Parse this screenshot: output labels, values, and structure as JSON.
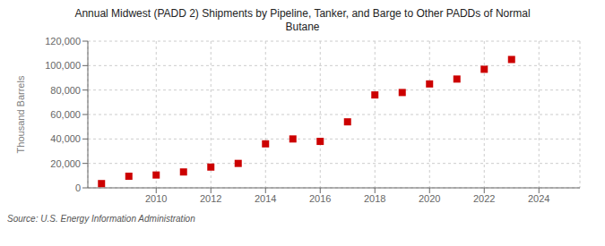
{
  "chart_data": {
    "type": "scatter",
    "title": "Annual Midwest (PADD 2) Shipments by Pipeline, Tanker, and Barge to Other PADDs of Normal\nButane",
    "ylabel": "Thousand Barrels",
    "source": "Source: U.S. Energy Information Administration",
    "x": [
      2008,
      2009,
      2010,
      2011,
      2012,
      2013,
      2014,
      2015,
      2016,
      2017,
      2018,
      2019,
      2020,
      2021,
      2022,
      2023
    ],
    "values": [
      3500,
      9500,
      10500,
      13000,
      17000,
      20000,
      36000,
      40000,
      38000,
      54000,
      76000,
      78000,
      85000,
      89000,
      97000,
      105000
    ],
    "color": "#cc0000",
    "marker": "square",
    "xlim": [
      2007.5,
      2025.5
    ],
    "xticks": [
      2010,
      2012,
      2014,
      2016,
      2018,
      2020,
      2022,
      2024
    ],
    "ylim": [
      0,
      120000
    ],
    "yticks": [
      0,
      {
        "value": 20000,
        "label": "20,000"
      },
      {
        "value": 40000,
        "label": "40,000"
      },
      {
        "value": 60000,
        "label": "60,000"
      },
      {
        "value": 80000,
        "label": "80,000"
      },
      {
        "value": 100000,
        "label": "100,000"
      },
      {
        "value": 120000,
        "label": "120,000"
      }
    ],
    "grid": true
  }
}
